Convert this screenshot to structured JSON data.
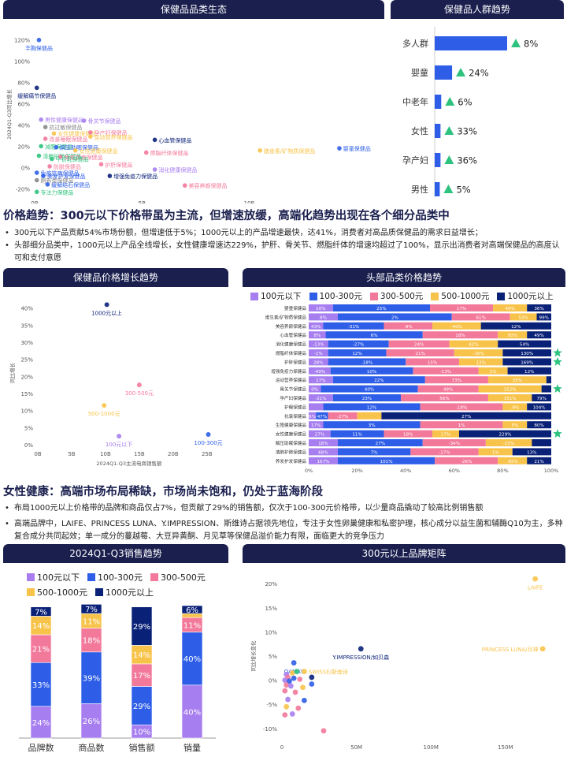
{
  "colors": {
    "navy": "#1a1f4e",
    "purple": "#a77ef0",
    "blue": "#2e5ee8",
    "pink": "#f3799b",
    "yellow": "#f8c34a",
    "darkblue": "#0a2178",
    "green": "#2ec27e"
  },
  "section1": {
    "heading": "价格趋势：300元以下价格带虽为主流，但增速放缓，高端化趋势出现在各个细分品类中",
    "bullets": [
      "300元以下产品贡献54%市场份额，但增速低于5%；1000元以上的产品增速最快，达41%，消费者对高品质保健品的需求日益增长；",
      "头部细分品类中，1000元以上产品全线增长，女性健康增速达229%，护肝、骨关节、燃脂纤体的增速均超过了100%，显示出消费者对高端保健品的高度认可和支付意愿"
    ]
  },
  "section2": {
    "heading": "女性健康：高端市场布局稀缺，市场尚未饱和，仍处于蓝海阶段",
    "bullets": [
      "布局1000元以上价格带的品牌和商品仅占7%，但贡献了29%的销售额，仅次于100-300元价格带，以少量商品撬动了较高比例销售额",
      "高端品牌中，LAIFE、PRINCESS LUNA、Y.IMPRESSION、斯维诗占据领先地位，专注于女性卵巢健康和私密护理，核心成分以益生菌和辅酶Q10为主，多种复合成分共同起效；单一成分的蔓越莓、大豆异黄酮、月见草等保健品溢价能力有限，面临更大的竞争压力"
    ]
  },
  "chart_data": [
    {
      "id": "category_ecology",
      "title": "保健品品类生态",
      "type": "scatter",
      "ylabel": "2024Q1-Q3同比增长",
      "x_ticks": [
        "0B",
        "5B",
        "10B"
      ],
      "y_ticks": [
        "-20%",
        "0%",
        "20%",
        "40%",
        "60%",
        "80%",
        "100%",
        "120%"
      ],
      "xlim": [
        0,
        16
      ],
      "ylim": [
        -25,
        125
      ],
      "points": [
        {
          "label": "丰胸保健品",
          "x": 0.2,
          "y": 120,
          "color": "#2e5ee8"
        },
        {
          "label": "缓解痛节保健品",
          "x": 0.1,
          "y": 75,
          "color": "#0a2178"
        },
        {
          "label": "男性健康保健品",
          "x": 0.3,
          "y": 45,
          "color": "#a77ef0"
        },
        {
          "label": "抗过敏保健品",
          "x": 0.5,
          "y": 38,
          "color": "#888888"
        },
        {
          "label": "骨关节保健品",
          "x": 2.3,
          "y": 44,
          "color": "#a77ef0"
        },
        {
          "label": "女性健康保健品",
          "x": 0.9,
          "y": 32,
          "color": "#f8c34a"
        },
        {
          "label": "孕产妇保健品",
          "x": 2.6,
          "y": 33,
          "color": "#f3799b"
        },
        {
          "label": "运动营养保健品",
          "x": 2.6,
          "y": 29,
          "color": "#f8c34a"
        },
        {
          "label": "改善睡眠保健品",
          "x": 0.5,
          "y": 27,
          "color": "#f3799b"
        },
        {
          "label": "心血管保健品",
          "x": 5.6,
          "y": 26,
          "color": "#0a2178"
        },
        {
          "label": "减肥保健品",
          "x": 0.3,
          "y": 20,
          "color": "#2ec27e"
        },
        {
          "label": "解压助眠保健品",
          "x": 1.0,
          "y": 19,
          "color": "#2e5ee8"
        },
        {
          "label": "女性健康保健品",
          "x": 1.9,
          "y": 16,
          "color": "#f8c34a"
        },
        {
          "label": "燃脂纤体保健品",
          "x": 5.2,
          "y": 14,
          "color": "#f3799b"
        },
        {
          "label": "膳食素/矿物质保健品",
          "x": 10.5,
          "y": 16,
          "color": "#f8c34a"
        },
        {
          "label": "婴童保健品",
          "x": 14.2,
          "y": 18,
          "color": "#2e5ee8"
        },
        {
          "label": "清肺护肺保健品",
          "x": 0.2,
          "y": 11,
          "color": "#2ec27e"
        },
        {
          "label": "免疫抗病保健品",
          "x": 1.2,
          "y": 10,
          "color": "#f3799b"
        },
        {
          "label": "牛初乳保健品",
          "x": 0.8,
          "y": 8,
          "color": "#2ec27e"
        },
        {
          "label": "护肝保健品",
          "x": 3.1,
          "y": 3,
          "color": "#f3799b"
        },
        {
          "label": "消化健康保健品",
          "x": 5.6,
          "y": -2,
          "color": "#a77ef0"
        },
        {
          "label": "防脱保健品",
          "x": 0.7,
          "y": 1,
          "color": "#f3799b"
        },
        {
          "label": "免疫抗病保健品",
          "x": 0.1,
          "y": -5,
          "color": "#2e5ee8"
        },
        {
          "label": "美发护发保健品",
          "x": 0.4,
          "y": -8,
          "color": "#2e5ee8"
        },
        {
          "label": "增强免疫力保健品",
          "x": 3.5,
          "y": -8,
          "color": "#0a2178"
        },
        {
          "label": "刷新类保健品",
          "x": 0.1,
          "y": -12,
          "color": "#888888"
        },
        {
          "label": "缓解结石保健品",
          "x": 0.6,
          "y": -16,
          "color": "#2e5ee8"
        },
        {
          "label": "美容养颜保健品",
          "x": 7.0,
          "y": -17,
          "color": "#f3799b"
        },
        {
          "label": "专注力保健品",
          "x": 0.1,
          "y": -23,
          "color": "#2ec27e"
        }
      ]
    },
    {
      "id": "crowd_trend",
      "title": "保健品人群趋势",
      "type": "bar",
      "categories": [
        "多人群",
        "婴童",
        "中老年",
        "女性",
        "孕产妇",
        "男性"
      ],
      "values": [
        100,
        24,
        9,
        8,
        8,
        7
      ],
      "growth": [
        "8%",
        "24%",
        "6%",
        "33%",
        "36%",
        "5%"
      ]
    },
    {
      "id": "price_growth",
      "title": "保健品价格增长趋势",
      "type": "scatter",
      "xlabel": "2024Q1-Q3主流电商销售额",
      "ylabel": "同比增长",
      "x_ticks": [
        "0B",
        "5B",
        "10B",
        "15B",
        "20B",
        "25B"
      ],
      "y_ticks": [
        "0%",
        "5%",
        "10%",
        "15%",
        "20%",
        "25%",
        "30%",
        "35%",
        "40%"
      ],
      "xlim": [
        0,
        27
      ],
      "ylim": [
        0,
        42
      ],
      "points": [
        {
          "label": "1000元以上",
          "x": 10.2,
          "y": 41,
          "color": "#0a2178"
        },
        {
          "label": "300-500元",
          "x": 15.0,
          "y": 17.5,
          "color": "#f3799b"
        },
        {
          "label": "500-1000元",
          "x": 9.8,
          "y": 11.5,
          "color": "#f8c34a"
        },
        {
          "label": "100元以下",
          "x": 12.0,
          "y": 2.5,
          "color": "#a77ef0"
        },
        {
          "label": "100-300元",
          "x": 25.2,
          "y": 3,
          "color": "#2e5ee8"
        }
      ]
    },
    {
      "id": "top_category_price",
      "title": "头部品类价格趋势",
      "type": "bar",
      "stacked": "percent",
      "x_ticks": [
        "0%",
        "20%",
        "40%",
        "60%",
        "80%",
        "100%"
      ],
      "series_names": [
        "100元以下",
        "100-300元",
        "300-500元",
        "500-1000元",
        "1000元以上"
      ],
      "rows": [
        {
          "category": "婴童保健品",
          "shares": [
            10,
            40,
            26,
            14,
            10
          ],
          "labels": [
            "10%",
            "25%",
            "17%",
            "40%",
            "36%"
          ]
        },
        {
          "category": "维生素/矿物质保健品",
          "shares": [
            12,
            47,
            24,
            11,
            6
          ],
          "labels": [
            "8%",
            "2%",
            "61%",
            "53%",
            "99%"
          ]
        },
        {
          "category": "美容养颜保健品",
          "shares": [
            6,
            25,
            20,
            20,
            29
          ],
          "labels": [
            "43%",
            "-31%",
            "-9%",
            "-40%",
            "12%"
          ]
        },
        {
          "category": "心血管保健品",
          "shares": [
            7,
            40,
            31,
            12,
            10
          ],
          "labels": [
            "8%",
            "6%",
            "18%",
            "50%",
            "49%"
          ]
        },
        {
          "category": "消化健康保健品",
          "shares": [
            8,
            25,
            25,
            20,
            22
          ],
          "labels": [
            "-13%",
            "-27%",
            "24%",
            "42%",
            "54%"
          ]
        },
        {
          "category": "燃脂纤体保健品",
          "shares": [
            8,
            24,
            28,
            20,
            20
          ],
          "labels": [
            "-1%",
            "12%",
            "21%",
            "-16%",
            "130%"
          ]
        },
        {
          "category": "护肝保健品",
          "shares": [
            8,
            32,
            22,
            18,
            20
          ],
          "labels": [
            "28%",
            "-18%",
            "15%",
            "13%",
            "169%"
          ]
        },
        {
          "category": "增强免疫力保健品",
          "shares": [
            9,
            34,
            27,
            12,
            18
          ],
          "labels": [
            "-49%",
            "10%",
            "-13%",
            "1%",
            "12%"
          ]
        },
        {
          "category": "运动营养保健品",
          "shares": [
            10,
            38,
            26,
            24,
            2
          ],
          "labels": [
            "17%",
            "22%",
            "73%",
            "35%",
            ""
          ]
        },
        {
          "category": "骨关节保健品",
          "shares": [
            5,
            40,
            25,
            26,
            4
          ],
          "labels": [
            "0%",
            "40%",
            "49%",
            "152%",
            ""
          ]
        },
        {
          "category": "孕产妇保健品",
          "shares": [
            10,
            28,
            36,
            18,
            8
          ],
          "labels": [
            "-21%",
            "23%",
            "56%",
            "151%",
            "79%"
          ]
        },
        {
          "category": "护眼保健品",
          "shares": [
            6,
            40,
            34,
            10,
            10
          ],
          "labels": [
            "",
            "12%",
            "-18%",
            "-9%",
            "104%"
          ]
        },
        {
          "category": "抗衰保健品",
          "shares": [
            3,
            5,
            12,
            10,
            70
          ],
          "labels": [
            "6%",
            "47%",
            "-27%",
            "",
            "27%"
          ]
        },
        {
          "category": "生殖健康保健品",
          "shares": [
            6,
            40,
            34,
            10,
            10
          ],
          "labels": [
            "17%",
            "3%",
            "1%",
            "5%",
            "80%"
          ]
        },
        {
          "category": "女性健康保健品",
          "shares": [
            9,
            22,
            20,
            11,
            38
          ],
          "labels": [
            "27%",
            "11%",
            "18%",
            "17%",
            "229%"
          ]
        },
        {
          "category": "解压助眠保健品",
          "shares": [
            12,
            35,
            26,
            19,
            8
          ],
          "labels": [
            "18%",
            "27%",
            "-34%",
            "-25%",
            ""
          ]
        },
        {
          "category": "清肺护肺保健品",
          "shares": [
            12,
            30,
            28,
            14,
            16
          ],
          "labels": [
            "68%",
            "7%",
            "-27%",
            "1%",
            "13%"
          ]
        },
        {
          "category": "养发护发保健品",
          "shares": [
            12,
            40,
            26,
            12,
            10
          ],
          "labels": [
            "167%",
            "101%",
            "-26%",
            "-65%",
            "21%"
          ]
        }
      ],
      "starred_rows": [
        5,
        6,
        9,
        14
      ]
    },
    {
      "id": "sales_trend",
      "title": "2024Q1-Q3销售趋势",
      "type": "bar",
      "stacked": "percent",
      "categories": [
        "品牌数",
        "商品数",
        "销售额",
        "销量"
      ],
      "series": [
        {
          "name": "100元以下",
          "values": [
            24,
            26,
            10,
            40
          ]
        },
        {
          "name": "100-300元",
          "values": [
            33,
            39,
            29,
            40
          ]
        },
        {
          "name": "300-500元",
          "values": [
            21,
            18,
            17,
            11
          ]
        },
        {
          "name": "500-1000元",
          "values": [
            14,
            11,
            14,
            3
          ]
        },
        {
          "name": "1000元以上",
          "values": [
            7,
            7,
            29,
            6
          ]
        }
      ],
      "labels": [
        [
          "24%",
          "33%",
          "21%",
          "14%",
          "7%"
        ],
        [
          "26%",
          "39%",
          "18%",
          "11%",
          "7%"
        ],
        [
          "10%",
          "29%",
          "17%",
          "14%",
          "29%"
        ],
        [
          "40%",
          "40%",
          "11%",
          "",
          "6%"
        ]
      ]
    },
    {
      "id": "brand_matrix",
      "title": "300元以上品牌矩阵",
      "type": "scatter",
      "ylabel": "同比增长变化",
      "x_ticks": [
        "0",
        "50M",
        "100M",
        "150M"
      ],
      "y_ticks": [
        "-10%",
        "-5%",
        "0%",
        "5%",
        "10%",
        "15%",
        "20%"
      ],
      "xlim": [
        0,
        185
      ],
      "ylim": [
        -12,
        22
      ],
      "points": [
        {
          "label": "LAIFE",
          "x": 170,
          "y": 21,
          "color": "#f8c34a"
        },
        {
          "label": "PRINCESS LUNA/月神",
          "x": 175,
          "y": 6.5,
          "color": "#f8c34a"
        },
        {
          "label": "Y.IMPRESSION/如贝森",
          "x": 53,
          "y": 6.5,
          "color": "#0a2178"
        },
        {
          "label": "OAMAY",
          "x": 8,
          "y": 3.6,
          "color": "#2e5ee8"
        },
        {
          "label": "SWISSE/斯维诗",
          "x": 15,
          "y": 1.8,
          "color": "#f8c34a"
        },
        {
          "label": "",
          "x": 3,
          "y": 1.2,
          "color": "#a77ef0"
        },
        {
          "label": "",
          "x": 7,
          "y": 1.5,
          "color": "#f8c34a"
        },
        {
          "label": "",
          "x": 10,
          "y": 1.8,
          "color": "#2ec27e"
        },
        {
          "label": "",
          "x": 4,
          "y": 0.6,
          "color": "#f3799b"
        },
        {
          "label": "",
          "x": 2,
          "y": 0.0,
          "color": "#a77ef0"
        },
        {
          "label": "",
          "x": 5,
          "y": -0.2,
          "color": "#2e5ee8"
        },
        {
          "label": "",
          "x": 8,
          "y": 0.4,
          "color": "#2e5ee8"
        },
        {
          "label": "",
          "x": 12,
          "y": 0.2,
          "color": "#f3799b"
        },
        {
          "label": "",
          "x": 20,
          "y": 0.6,
          "color": "#0a2178"
        },
        {
          "label": "",
          "x": 20,
          "y": -0.8,
          "color": "#2e5ee8"
        },
        {
          "label": "",
          "x": 3,
          "y": -1.0,
          "color": "#f3799b"
        },
        {
          "label": "",
          "x": 6,
          "y": -1.2,
          "color": "#a77ef0"
        },
        {
          "label": "",
          "x": 14,
          "y": -1.5,
          "color": "#f8c34a"
        },
        {
          "label": "",
          "x": 2,
          "y": -2.2,
          "color": "#f3799b"
        },
        {
          "label": "",
          "x": 9,
          "y": -2.5,
          "color": "#f3799b"
        },
        {
          "label": "",
          "x": 4,
          "y": -4.0,
          "color": "#a77ef0"
        },
        {
          "label": "",
          "x": 15,
          "y": -4.2,
          "color": "#2e5ee8"
        },
        {
          "label": "",
          "x": 3,
          "y": -5.5,
          "color": "#f8c34a"
        },
        {
          "label": "",
          "x": 11,
          "y": -5.8,
          "color": "#f3799b"
        },
        {
          "label": "",
          "x": 7,
          "y": -7.0,
          "color": "#a77ef0"
        },
        {
          "label": "",
          "x": 2,
          "y": -7.2,
          "color": "#f3799b"
        },
        {
          "label": "",
          "x": 28,
          "y": -10.5,
          "color": "#f3799b"
        }
      ]
    }
  ],
  "legend": {
    "items": [
      "100元以下",
      "100-300元",
      "300-500元",
      "500-1000元",
      "1000元以上"
    ]
  }
}
